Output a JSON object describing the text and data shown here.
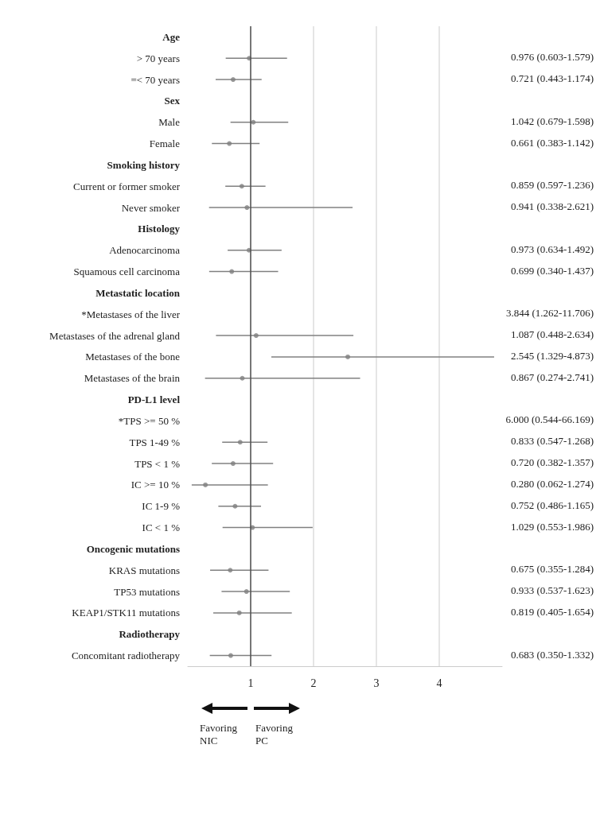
{
  "chart_data": {
    "type": "scatter",
    "orientation": "horizontal",
    "categories": [
      "Age",
      "> 70 years",
      "=< 70 years",
      "Sex",
      "Male",
      "Female",
      "Smoking history",
      "Current or former smoker",
      "Never smoker",
      "Histology",
      "Adenocarcinoma",
      "Squamous cell carcinoma",
      "Metastatic location",
      "*Metastases of the liver",
      "Metastases of the adrenal gland",
      "Metastases of the bone",
      "Metastases of the brain",
      "PD-L1 level",
      "*TPS >= 50 %",
      "TPS 1-49 %",
      "TPS < 1 %",
      "IC >= 10 %",
      "IC 1-9 %",
      "IC < 1 %",
      "Oncogenic mutations",
      "KRAS mutations",
      "TP53 mutations",
      "KEAP1/STK11 mutations",
      "Radiotherapy",
      "Concomitant radiotherapy"
    ],
    "values": [
      null,
      0.976,
      0.721,
      null,
      1.042,
      0.661,
      null,
      0.859,
      0.941,
      null,
      0.973,
      0.699,
      null,
      null,
      1.087,
      2.545,
      0.867,
      null,
      null,
      0.833,
      0.72,
      0.28,
      0.752,
      1.029,
      null,
      0.675,
      0.933,
      0.819,
      null,
      0.683
    ],
    "errors": [
      null,
      [
        0.603,
        1.579
      ],
      [
        0.443,
        1.174
      ],
      null,
      [
        0.679,
        1.598
      ],
      [
        0.383,
        1.142
      ],
      null,
      [
        0.597,
        1.236
      ],
      [
        0.338,
        2.621
      ],
      null,
      [
        0.634,
        1.492
      ],
      [
        0.34,
        1.437
      ],
      null,
      null,
      [
        0.448,
        2.634
      ],
      [
        1.329,
        4.873
      ],
      [
        0.274,
        2.741
      ],
      null,
      null,
      [
        0.547,
        1.268
      ],
      [
        0.382,
        1.357
      ],
      [
        0.062,
        1.274
      ],
      [
        0.486,
        1.165
      ],
      [
        0.553,
        1.986
      ],
      null,
      [
        0.355,
        1.284
      ],
      [
        0.537,
        1.623
      ],
      [
        0.405,
        1.654
      ],
      null,
      [
        0.35,
        1.332
      ]
    ],
    "value_labels": [
      null,
      "0.976 (0.603-1.579)",
      "0.721 (0.443-1.174)",
      null,
      "1.042 (0.679-1.598)",
      "0.661 (0.383-1.142)",
      null,
      "0.859 (0.597-1.236)",
      "0.941 (0.338-2.621)",
      null,
      "0.973 (0.634-1.492)",
      "0.699 (0.340-1.437)",
      null,
      "3.844 (1.262-11.706)",
      "1.087 (0.448-2.634)",
      "2.545 (1.329-4.873)",
      "0.867 (0.274-2.741)",
      null,
      "6.000 (0.544-66.169)",
      "0.833 (0.547-1.268)",
      "0.720 (0.382-1.357)",
      "0.280 (0.062-1.274)",
      "0.752 (0.486-1.165)",
      "1.029 (0.553-1.986)",
      null,
      "0.675 (0.355-1.284)",
      "0.933 (0.537-1.623)",
      "0.819 (0.405-1.654)",
      null,
      "0.683 (0.350-1.332)"
    ],
    "color": "#808080",
    "marker": "circle",
    "xlim": [
      0,
      5
    ],
    "xticks": [
      1,
      2,
      3,
      4
    ],
    "grid": "x",
    "legend": false,
    "ref_lines": [
      {
        "axis": "x",
        "value": 1,
        "color": "#505050"
      }
    ],
    "annotations": [
      "Favoring\nNIC",
      "Favoring\nPC"
    ]
  }
}
